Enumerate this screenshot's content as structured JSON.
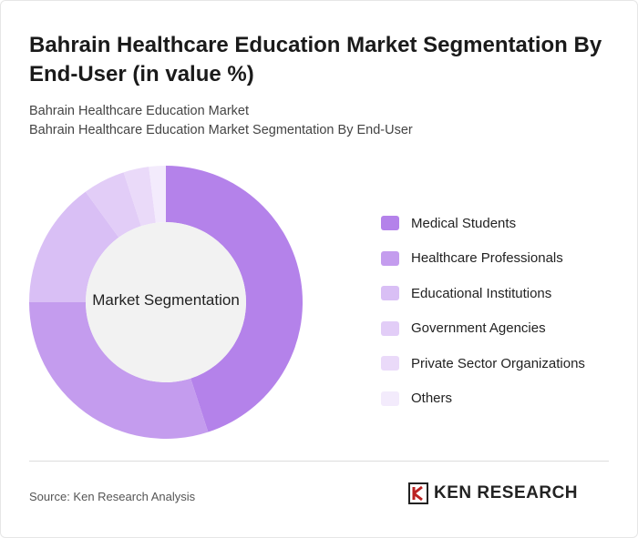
{
  "title": "Bahrain Healthcare Education Market Segmentation By End-User (in value %)",
  "subtitle1": "Bahrain Healthcare Education Market",
  "subtitle2": "Bahrain Healthcare Education Market Segmentation By End-User",
  "source": "Source: Ken Research Analysis",
  "logo_text": "KEN RESEARCH",
  "chart_data": {
    "type": "pie",
    "variant": "donut",
    "center_label": "Market Segmentation",
    "categories": [
      "Medical Students",
      "Healthcare Professionals",
      "Educational Institutions",
      "Government Agencies",
      "Private Sector Organizations",
      "Others"
    ],
    "values": [
      45,
      30,
      15,
      5,
      3,
      2
    ],
    "unit": "%",
    "colors": [
      "#b482ea",
      "#c49cee",
      "#d9bff5",
      "#e2cdf7",
      "#eadaf9",
      "#f3ebfc"
    ],
    "legend_position": "right"
  }
}
